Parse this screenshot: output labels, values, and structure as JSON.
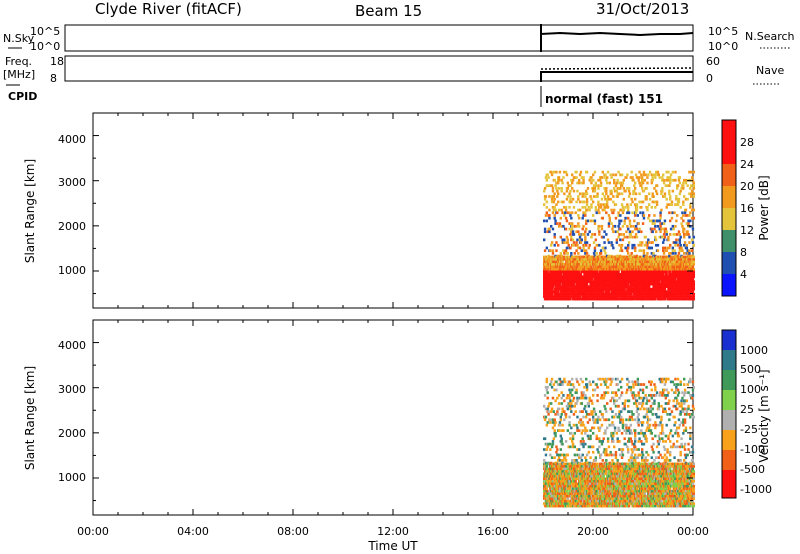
{
  "header": {
    "site": "Clyde River (fitACF)",
    "beam": "Beam 15",
    "date": "31/Oct/2013"
  },
  "top_panels": {
    "nsky_label": "N.Sky",
    "nsky_ticks": [
      "10^5",
      "10^0"
    ],
    "nsearch_label": "N.Search",
    "nsearch_ticks": [
      "10^5",
      "10^0"
    ],
    "freq_label": "Freq.",
    "freq_unit": "[MHz]",
    "freq_ticks": [
      "18",
      "8"
    ],
    "nave_label": "Nave",
    "nave_ticks": [
      "60",
      "0"
    ],
    "cpid_label": "CPID",
    "cpid_text": "normal (fast) 151"
  },
  "colors": {
    "power": [
      "#0a14ff",
      "#1f4fb0",
      "#3f8f6a",
      "#57b24a",
      "#e3c43a",
      "#f29a1e",
      "#f06018",
      "#ff1010"
    ],
    "velocity": [
      "#ff1010",
      "#f06018",
      "#f7a21a",
      "#b0b0b0",
      "#7fd04a",
      "#3f9a5a",
      "#2f7a8a",
      "#1a2fd0"
    ]
  },
  "chart_data": [
    {
      "type": "heatmap",
      "name_panel": "power",
      "ylabel": "Slant Range [km]",
      "ylim": [
        180,
        4500
      ],
      "y_ticks": [
        "4000",
        "3000",
        "2000",
        "1000"
      ],
      "xlim_hours": [
        0,
        24
      ],
      "colorbar": {
        "label": "Power [dB]",
        "ticks": [
          "28",
          "24",
          "20",
          "16",
          "12",
          "8",
          "4"
        ],
        "range": [
          0,
          32
        ]
      },
      "data_start_time": "18:00",
      "data_end_time": "24:00"
    },
    {
      "type": "heatmap",
      "name_panel": "velocity",
      "ylabel": "Slant Range [km]",
      "ylim": [
        180,
        4500
      ],
      "y_ticks": [
        "4000",
        "3000",
        "2000",
        "1000"
      ],
      "xlim_hours": [
        0,
        24
      ],
      "xlabel": "Time UT",
      "x_ticks": [
        "00:00",
        "04:00",
        "08:00",
        "12:00",
        "16:00",
        "20:00",
        "00:00"
      ],
      "colorbar": {
        "label": "Velocity [m s⁻¹]",
        "ticks": [
          "1000",
          "500",
          "100",
          "25",
          "-25",
          "-100",
          "-500",
          "-1000"
        ]
      },
      "data_start_time": "18:00",
      "data_end_time": "24:00"
    }
  ]
}
